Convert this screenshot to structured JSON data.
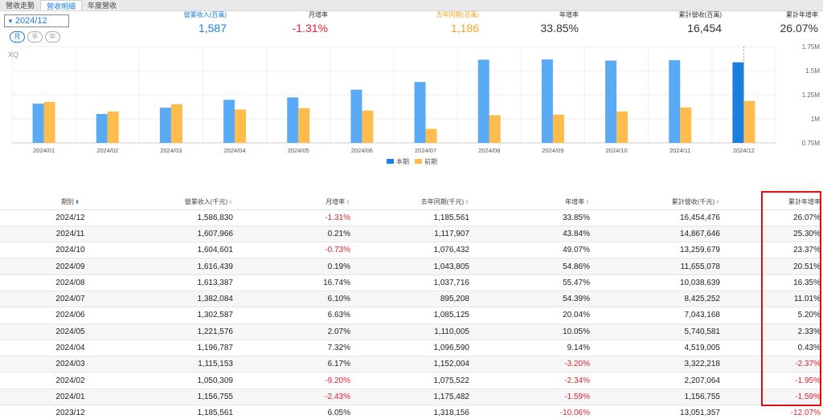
{
  "tabs": [
    "營收走勢",
    "營收明細",
    "年度營收"
  ],
  "period": "2024/12",
  "periodPills": [
    "月",
    "季",
    "年"
  ],
  "summary": [
    {
      "label": "營業收入(百萬)",
      "value": "1,587",
      "color": "#1a7fe0"
    },
    {
      "label": "月增率",
      "value": "-1.31%",
      "color": "#e5202e"
    },
    {
      "label": "去年同期(百萬)",
      "value": "1,186",
      "color": "#f5a623"
    },
    {
      "label": "年增率",
      "value": "33.85%",
      "color": "#333333"
    },
    {
      "label": "累計營收(百萬)",
      "value": "16,454",
      "color": "#333333"
    },
    {
      "label": "累計年增率",
      "value": "26.07%",
      "color": "#333333"
    }
  ],
  "chart_data": {
    "type": "bar",
    "watermark": "XQ",
    "categories": [
      "2024/01",
      "2024/02",
      "2024/03",
      "2024/04",
      "2024/05",
      "2024/06",
      "2024/07",
      "2024/08",
      "2024/09",
      "2024/10",
      "2024/11",
      "2024/12"
    ],
    "series": [
      {
        "name": "本期",
        "color": "#5aa9f5",
        "highlight": "#1a7fe0",
        "values": [
          1156755,
          1050309,
          1115153,
          1196787,
          1221576,
          1302587,
          1382084,
          1613387,
          1616439,
          1604601,
          1607966,
          1586830
        ]
      },
      {
        "name": "前期",
        "color": "#fcbc4e",
        "values": [
          1175482,
          1075522,
          1152004,
          1096590,
          1110005,
          1085125,
          895208,
          1037716,
          1043805,
          1076432,
          1117907,
          1185561
        ]
      }
    ],
    "yTicks": [
      {
        "v": 750000,
        "label": "0.75M"
      },
      {
        "v": 1000000,
        "label": "1M"
      },
      {
        "v": 1250000,
        "label": "1.25M"
      },
      {
        "v": 1500000,
        "label": "1.5M"
      },
      {
        "v": 1750000,
        "label": "1.75M"
      }
    ],
    "ylim": [
      750000,
      1750000
    ],
    "legend": "bottom-center"
  },
  "table": {
    "headers": [
      "期別",
      "營業收入(千元)",
      "月增率",
      "去年同期(千元)",
      "年增率",
      "累計營收(千元)",
      "累計年增率"
    ],
    "rows": [
      [
        "2024/12",
        "1,586,830",
        "-1.31%",
        "1,185,561",
        "33.85%",
        "16,454,476",
        "26.07%"
      ],
      [
        "2024/11",
        "1,607,966",
        "0.21%",
        "1,117,907",
        "43.84%",
        "14,867,646",
        "25.30%"
      ],
      [
        "2024/10",
        "1,604,601",
        "-0.73%",
        "1,076,432",
        "49.07%",
        "13,259,679",
        "23.37%"
      ],
      [
        "2024/09",
        "1,616,439",
        "0.19%",
        "1,043,805",
        "54.86%",
        "11,655,078",
        "20.51%"
      ],
      [
        "2024/08",
        "1,613,387",
        "16.74%",
        "1,037,716",
        "55.47%",
        "10,038,639",
        "16.35%"
      ],
      [
        "2024/07",
        "1,382,084",
        "6.10%",
        "895,208",
        "54.39%",
        "8,425,252",
        "11.01%"
      ],
      [
        "2024/06",
        "1,302,587",
        "6.63%",
        "1,085,125",
        "20.04%",
        "7,043,168",
        "5.20%"
      ],
      [
        "2024/05",
        "1,221,576",
        "2.07%",
        "1,110,005",
        "10.05%",
        "5,740,581",
        "2.33%"
      ],
      [
        "2024/04",
        "1,196,787",
        "7.32%",
        "1,096,590",
        "9.14%",
        "4,519,005",
        "0.43%"
      ],
      [
        "2024/03",
        "1,115,153",
        "6.17%",
        "1,152,004",
        "-3.20%",
        "3,322,218",
        "-2.37%"
      ],
      [
        "2024/02",
        "1,050,309",
        "-9.20%",
        "1,075,522",
        "-2.34%",
        "2,207,064",
        "-1.95%"
      ],
      [
        "2024/01",
        "1,156,755",
        "-2.43%",
        "1,175,482",
        "-1.59%",
        "1,156,755",
        "-1.59%"
      ],
      [
        "2023/12",
        "1,185,561",
        "6.05%",
        "1,318,156",
        "-10.06%",
        "13,051,357",
        "-12.07%"
      ]
    ]
  }
}
